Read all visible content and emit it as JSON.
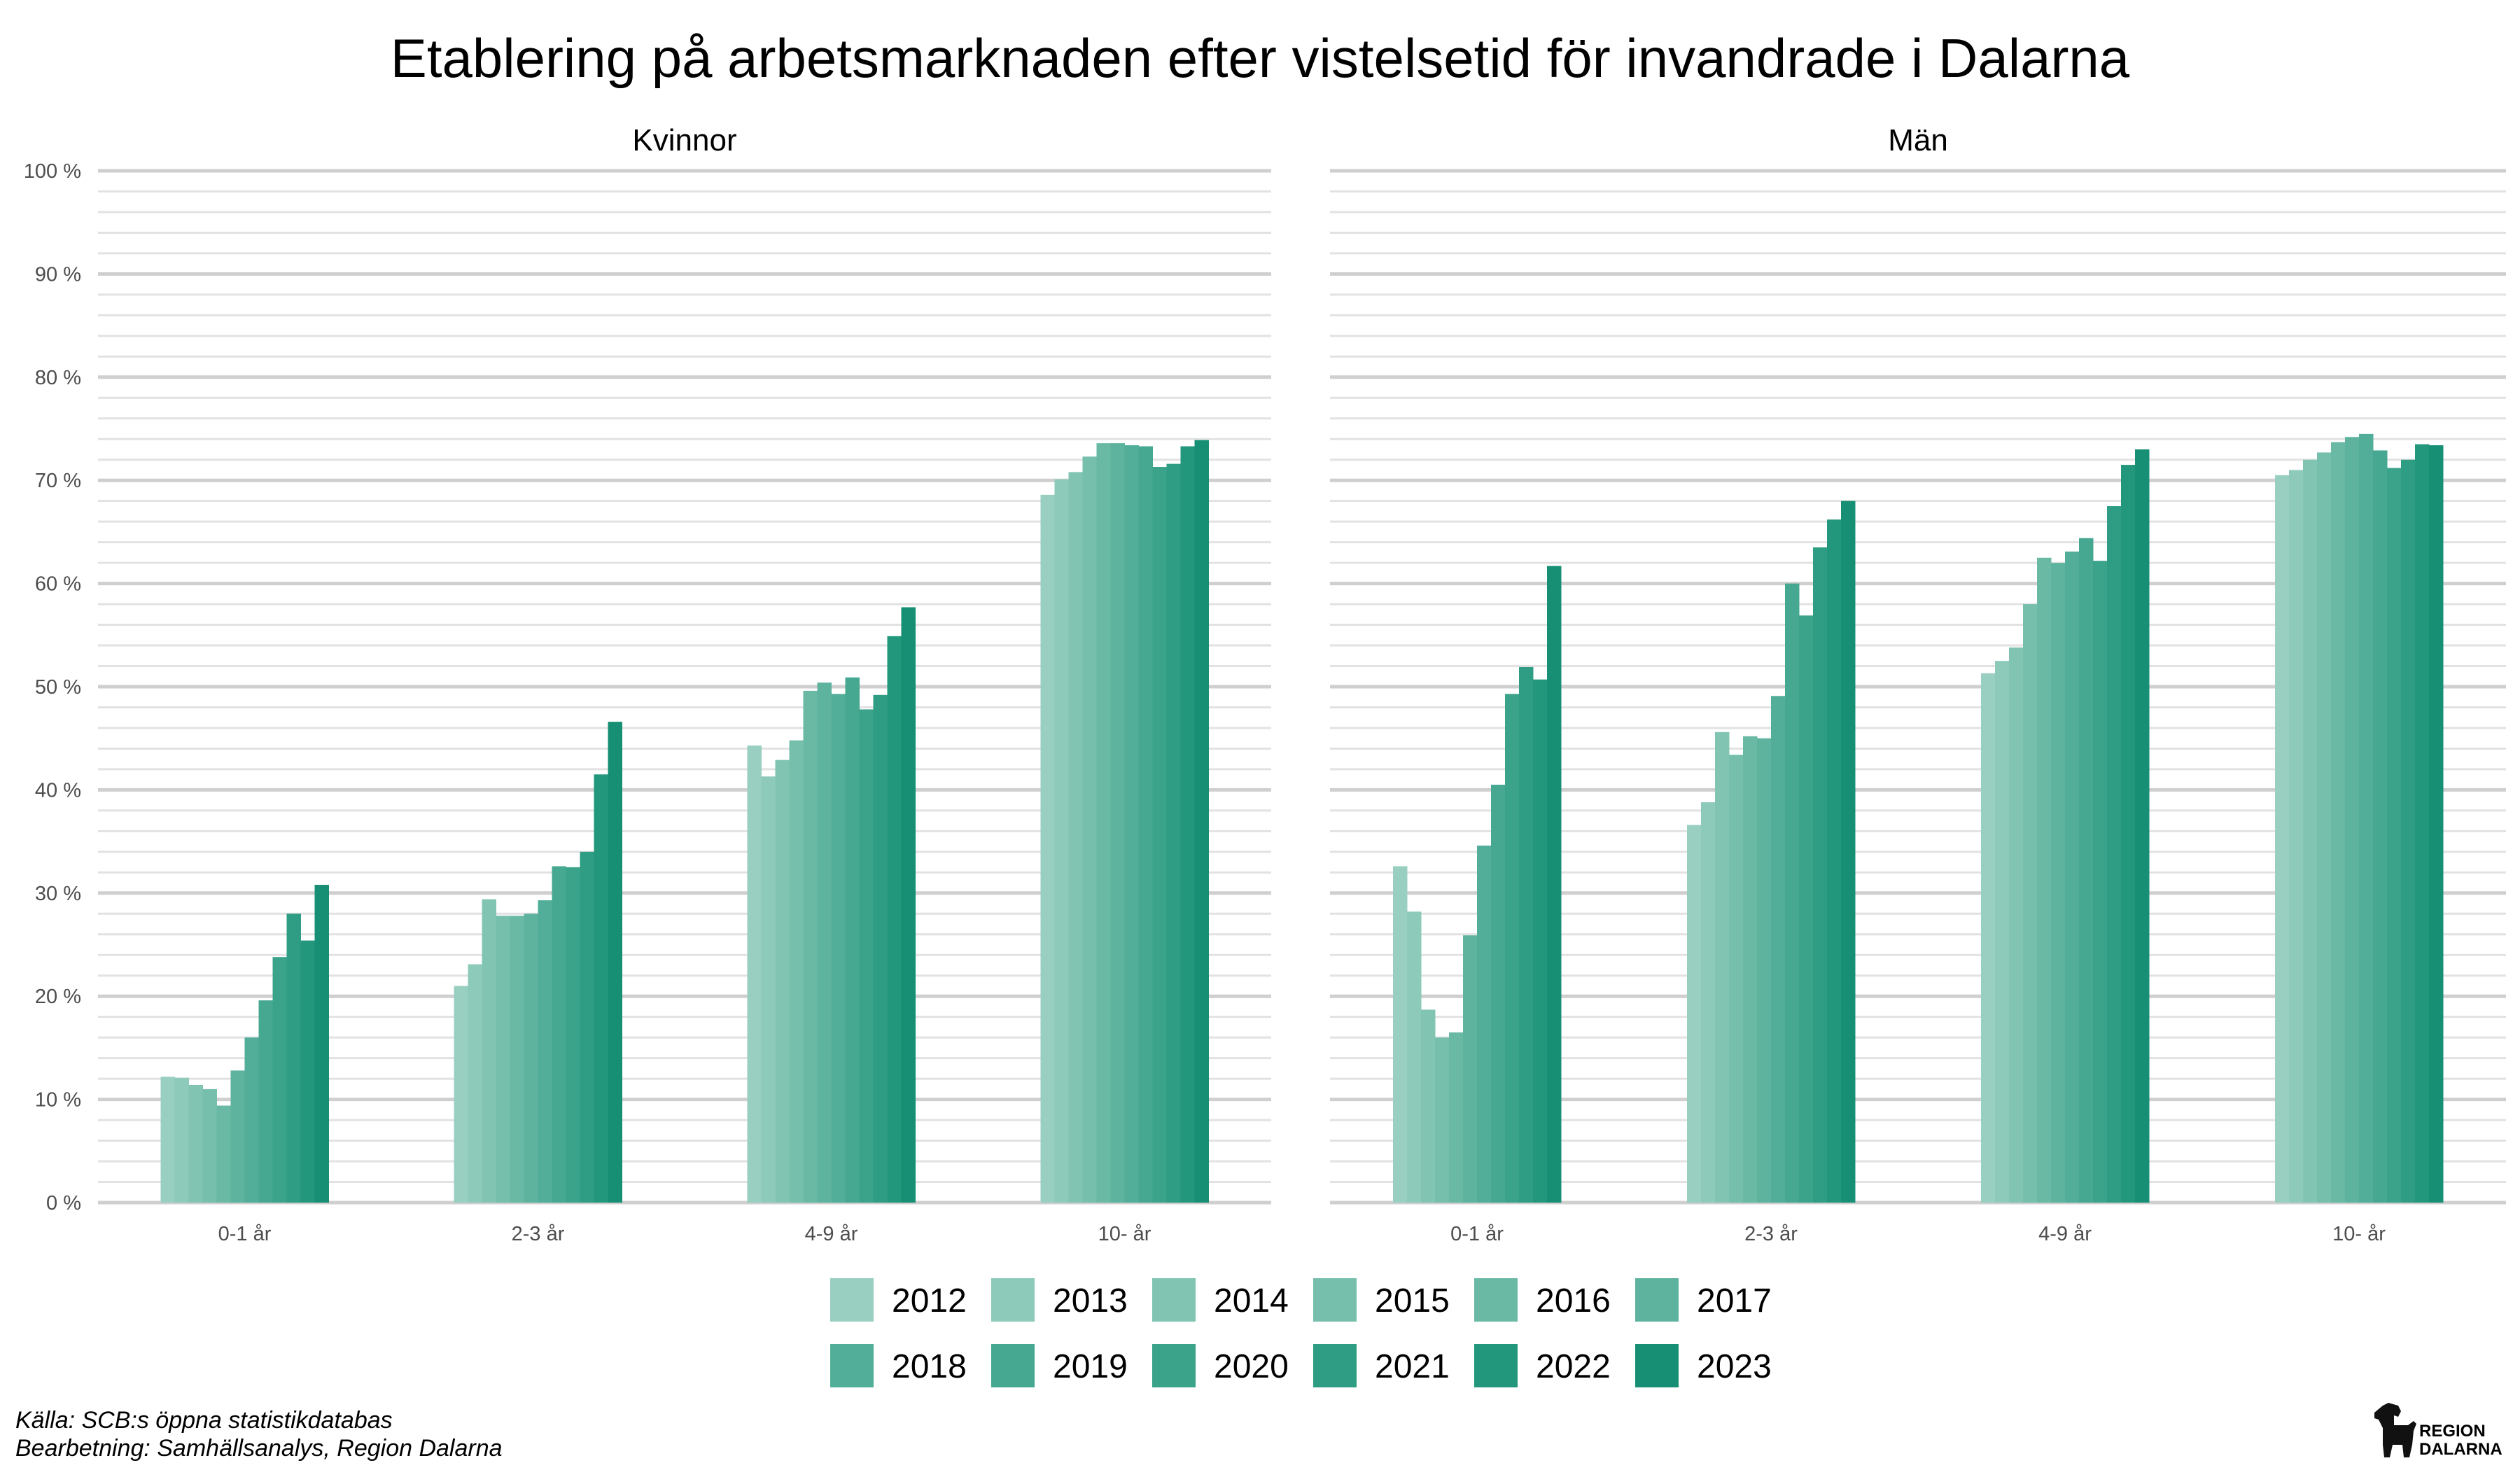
{
  "chart_data": {
    "type": "bar",
    "title": "Etablering på arbetsmarknaden efter vistelsetid för invandrade i Dalarna",
    "categories": [
      "0-1 år",
      "2-3 år",
      "4-9 år",
      "10- år"
    ],
    "years": [
      "2012",
      "2013",
      "2014",
      "2015",
      "2016",
      "2017",
      "2018",
      "2019",
      "2020",
      "2021",
      "2022",
      "2023"
    ],
    "colors": [
      "#98cfc0",
      "#8dcab9",
      "#81c4b2",
      "#75bfac",
      "#6ab9a5",
      "#5eb39e",
      "#52ae98",
      "#46a891",
      "#3aa38a",
      "#2e9d83",
      "#22977c",
      "#168f74"
    ],
    "yticks": [
      0,
      10,
      20,
      30,
      40,
      50,
      60,
      70,
      80,
      90,
      100
    ],
    "ytick_labels": [
      "0 %",
      "10 %",
      "20 %",
      "30 %",
      "40 %",
      "50 %",
      "60 %",
      "70 %",
      "80 %",
      "90 %",
      "100 %"
    ],
    "ylim": [
      0,
      100
    ],
    "panels": [
      {
        "name": "Kvinnor",
        "values": [
          [
            12.2,
            12.1,
            11.4,
            11.0,
            9.4,
            12.8,
            16.0,
            19.6,
            23.8,
            28.0,
            25.4,
            30.8
          ],
          [
            21.0,
            23.1,
            29.4,
            27.8,
            27.8,
            28.0,
            29.3,
            32.6,
            32.5,
            34.0,
            41.5,
            46.6
          ],
          [
            44.3,
            41.3,
            42.9,
            44.8,
            49.6,
            50.4,
            49.3,
            50.9,
            47.8,
            49.2,
            54.9,
            57.7
          ],
          [
            68.6,
            70.1,
            70.8,
            72.3,
            73.6,
            73.6,
            73.4,
            73.3,
            71.3,
            71.6,
            73.3,
            73.9
          ]
        ]
      },
      {
        "name": "Män",
        "values": [
          [
            32.6,
            28.2,
            18.7,
            16.0,
            16.5,
            25.9,
            34.6,
            40.5,
            49.3,
            51.9,
            50.7,
            61.7
          ],
          [
            36.6,
            38.8,
            45.6,
            43.4,
            45.2,
            45.0,
            49.1,
            60.0,
            56.9,
            63.5,
            66.2,
            68.0
          ],
          [
            51.3,
            52.5,
            53.8,
            58.0,
            62.5,
            62.0,
            63.1,
            64.4,
            62.2,
            67.5,
            71.5,
            73.0
          ],
          [
            70.5,
            71.0,
            72.0,
            72.7,
            73.7,
            74.2,
            74.5,
            72.9,
            71.2,
            72.0,
            73.5,
            73.4
          ]
        ]
      }
    ],
    "legend_position": "bottom",
    "grid": true
  },
  "caption": {
    "source": "Källa: SCB:s öppna statistikdatabas",
    "processing": "Bearbetning: Samhällsanalys, Region Dalarna"
  },
  "logo": {
    "line1": "REGION",
    "line2": "DALARNA"
  }
}
